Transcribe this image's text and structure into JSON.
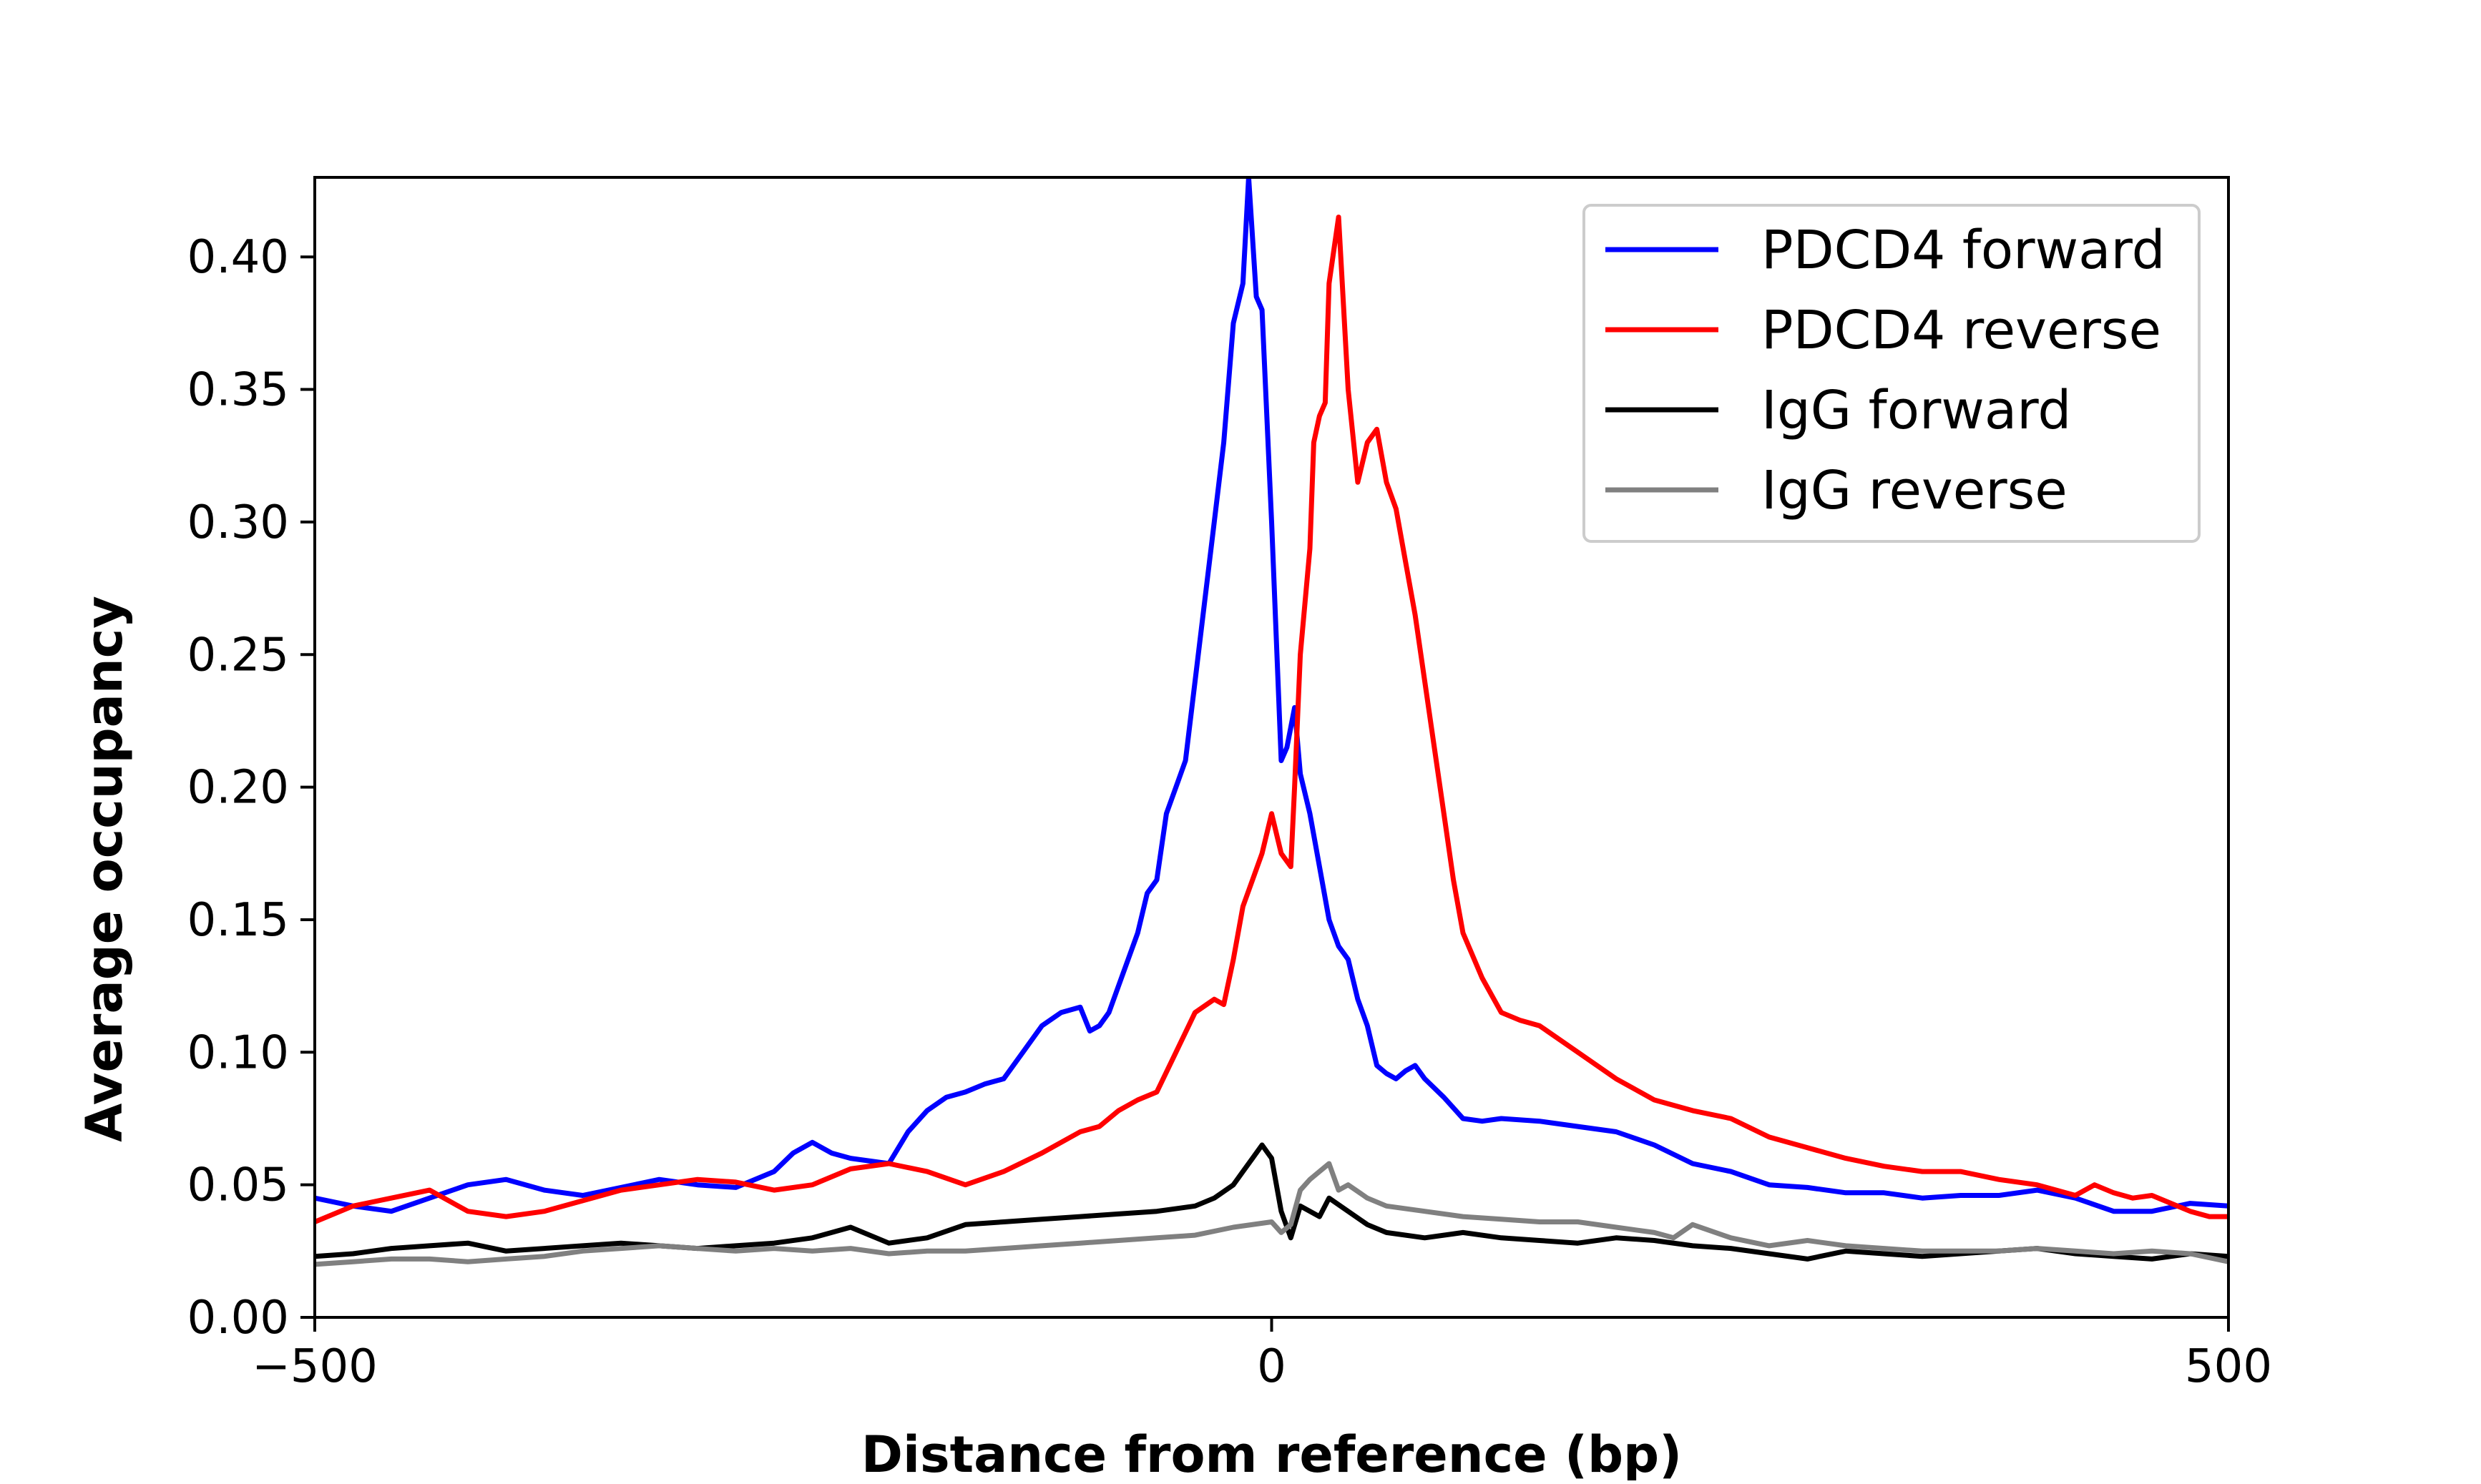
{
  "chart_data": {
    "type": "line",
    "title": "",
    "xlabel": "Distance from reference (bp)",
    "ylabel": "Average occupancy",
    "xlim": [
      -500,
      500
    ],
    "ylim": [
      0,
      0.43
    ],
    "xticks": [
      -500,
      0,
      500
    ],
    "xtick_labels": [
      "−500",
      "0",
      "500"
    ],
    "yticks": [
      0,
      0.05,
      0.1,
      0.15,
      0.2,
      0.25,
      0.3,
      0.35,
      0.4
    ],
    "ytick_labels": [
      "0.00",
      "0.05",
      "0.10",
      "0.15",
      "0.20",
      "0.25",
      "0.30",
      "0.35",
      "0.40"
    ],
    "grid": false,
    "legend_position": "top-right",
    "series": [
      {
        "name": "PDCD4 forward",
        "color": "#0000ff",
        "x": [
          -500,
          -480,
          -460,
          -440,
          -420,
          -400,
          -380,
          -360,
          -340,
          -320,
          -300,
          -280,
          -260,
          -250,
          -240,
          -230,
          -220,
          -200,
          -190,
          -180,
          -170,
          -160,
          -150,
          -140,
          -130,
          -120,
          -110,
          -100,
          -95,
          -90,
          -85,
          -80,
          -75,
          -70,
          -65,
          -60,
          -55,
          -50,
          -45,
          -40,
          -35,
          -30,
          -25,
          -20,
          -15,
          -12,
          -8,
          -5,
          0,
          5,
          8,
          12,
          15,
          20,
          25,
          30,
          35,
          40,
          45,
          50,
          55,
          60,
          65,
          70,
          75,
          80,
          90,
          100,
          110,
          120,
          140,
          160,
          180,
          200,
          220,
          240,
          260,
          280,
          300,
          320,
          340,
          360,
          380,
          400,
          420,
          440,
          460,
          480,
          500
        ],
        "y": [
          0.045,
          0.042,
          0.04,
          0.045,
          0.05,
          0.052,
          0.048,
          0.046,
          0.049,
          0.052,
          0.05,
          0.049,
          0.055,
          0.062,
          0.066,
          0.062,
          0.06,
          0.058,
          0.07,
          0.078,
          0.083,
          0.085,
          0.088,
          0.09,
          0.1,
          0.11,
          0.115,
          0.117,
          0.108,
          0.11,
          0.115,
          0.125,
          0.135,
          0.145,
          0.16,
          0.165,
          0.19,
          0.2,
          0.21,
          0.24,
          0.27,
          0.3,
          0.33,
          0.375,
          0.39,
          0.43,
          0.385,
          0.38,
          0.3,
          0.21,
          0.215,
          0.23,
          0.205,
          0.19,
          0.17,
          0.15,
          0.14,
          0.135,
          0.12,
          0.11,
          0.095,
          0.092,
          0.09,
          0.093,
          0.095,
          0.09,
          0.083,
          0.075,
          0.074,
          0.075,
          0.074,
          0.072,
          0.07,
          0.065,
          0.058,
          0.055,
          0.05,
          0.049,
          0.047,
          0.047,
          0.045,
          0.046,
          0.046,
          0.048,
          0.045,
          0.04,
          0.04,
          0.043,
          0.042
        ]
      },
      {
        "name": "PDCD4 reverse",
        "color": "#ff0000",
        "x": [
          -500,
          -480,
          -460,
          -440,
          -420,
          -400,
          -380,
          -360,
          -340,
          -320,
          -300,
          -280,
          -260,
          -240,
          -220,
          -200,
          -180,
          -160,
          -140,
          -120,
          -100,
          -90,
          -80,
          -70,
          -60,
          -50,
          -40,
          -30,
          -25,
          -20,
          -15,
          -10,
          -5,
          0,
          5,
          10,
          12,
          15,
          20,
          22,
          25,
          28,
          30,
          35,
          40,
          45,
          50,
          55,
          60,
          65,
          70,
          75,
          80,
          85,
          90,
          95,
          100,
          110,
          120,
          130,
          140,
          160,
          180,
          200,
          220,
          240,
          260,
          280,
          300,
          320,
          340,
          360,
          380,
          400,
          410,
          420,
          430,
          440,
          450,
          460,
          470,
          480,
          490,
          500
        ],
        "y": [
          0.036,
          0.042,
          0.045,
          0.048,
          0.04,
          0.038,
          0.04,
          0.044,
          0.048,
          0.05,
          0.052,
          0.051,
          0.048,
          0.05,
          0.056,
          0.058,
          0.055,
          0.05,
          0.055,
          0.062,
          0.07,
          0.072,
          0.078,
          0.082,
          0.085,
          0.1,
          0.115,
          0.12,
          0.118,
          0.135,
          0.155,
          0.165,
          0.175,
          0.19,
          0.175,
          0.17,
          0.2,
          0.25,
          0.29,
          0.33,
          0.34,
          0.345,
          0.39,
          0.415,
          0.35,
          0.315,
          0.33,
          0.335,
          0.315,
          0.305,
          0.285,
          0.265,
          0.24,
          0.215,
          0.19,
          0.165,
          0.145,
          0.128,
          0.115,
          0.112,
          0.11,
          0.1,
          0.09,
          0.082,
          0.078,
          0.075,
          0.068,
          0.064,
          0.06,
          0.057,
          0.055,
          0.055,
          0.052,
          0.05,
          0.048,
          0.046,
          0.05,
          0.047,
          0.045,
          0.046,
          0.043,
          0.04,
          0.038,
          0.038
        ]
      },
      {
        "name": "IgG forward",
        "color": "#000000",
        "x": [
          -500,
          -480,
          -460,
          -440,
          -420,
          -400,
          -380,
          -360,
          -340,
          -320,
          -300,
          -280,
          -260,
          -240,
          -220,
          -200,
          -180,
          -160,
          -140,
          -120,
          -100,
          -80,
          -60,
          -40,
          -30,
          -20,
          -15,
          -10,
          -5,
          0,
          5,
          10,
          15,
          20,
          25,
          30,
          40,
          50,
          60,
          80,
          100,
          120,
          140,
          160,
          180,
          200,
          220,
          240,
          260,
          280,
          300,
          320,
          340,
          360,
          380,
          400,
          420,
          440,
          460,
          480,
          500
        ],
        "y": [
          0.023,
          0.024,
          0.026,
          0.027,
          0.028,
          0.025,
          0.026,
          0.027,
          0.028,
          0.027,
          0.026,
          0.027,
          0.028,
          0.03,
          0.034,
          0.028,
          0.03,
          0.035,
          0.036,
          0.037,
          0.038,
          0.039,
          0.04,
          0.042,
          0.045,
          0.05,
          0.055,
          0.06,
          0.065,
          0.06,
          0.04,
          0.03,
          0.042,
          0.04,
          0.038,
          0.045,
          0.04,
          0.035,
          0.032,
          0.03,
          0.032,
          0.03,
          0.029,
          0.028,
          0.03,
          0.029,
          0.027,
          0.026,
          0.024,
          0.022,
          0.025,
          0.024,
          0.023,
          0.024,
          0.025,
          0.026,
          0.024,
          0.023,
          0.022,
          0.024,
          0.023
        ]
      },
      {
        "name": "IgG reverse",
        "color": "#808080",
        "x": [
          -500,
          -480,
          -460,
          -440,
          -420,
          -400,
          -380,
          -360,
          -340,
          -320,
          -300,
          -280,
          -260,
          -240,
          -220,
          -200,
          -180,
          -160,
          -140,
          -120,
          -100,
          -80,
          -60,
          -40,
          -20,
          0,
          5,
          10,
          15,
          20,
          25,
          30,
          35,
          40,
          50,
          60,
          80,
          100,
          120,
          140,
          160,
          180,
          200,
          210,
          220,
          240,
          260,
          280,
          300,
          320,
          340,
          360,
          380,
          400,
          420,
          440,
          460,
          480,
          500
        ],
        "y": [
          0.02,
          0.021,
          0.022,
          0.022,
          0.021,
          0.022,
          0.023,
          0.025,
          0.026,
          0.027,
          0.026,
          0.025,
          0.026,
          0.025,
          0.026,
          0.024,
          0.025,
          0.025,
          0.026,
          0.027,
          0.028,
          0.029,
          0.03,
          0.031,
          0.034,
          0.036,
          0.032,
          0.035,
          0.048,
          0.052,
          0.055,
          0.058,
          0.048,
          0.05,
          0.045,
          0.042,
          0.04,
          0.038,
          0.037,
          0.036,
          0.036,
          0.034,
          0.032,
          0.03,
          0.035,
          0.03,
          0.027,
          0.029,
          0.027,
          0.026,
          0.025,
          0.025,
          0.025,
          0.026,
          0.025,
          0.024,
          0.025,
          0.024,
          0.021
        ]
      }
    ]
  }
}
